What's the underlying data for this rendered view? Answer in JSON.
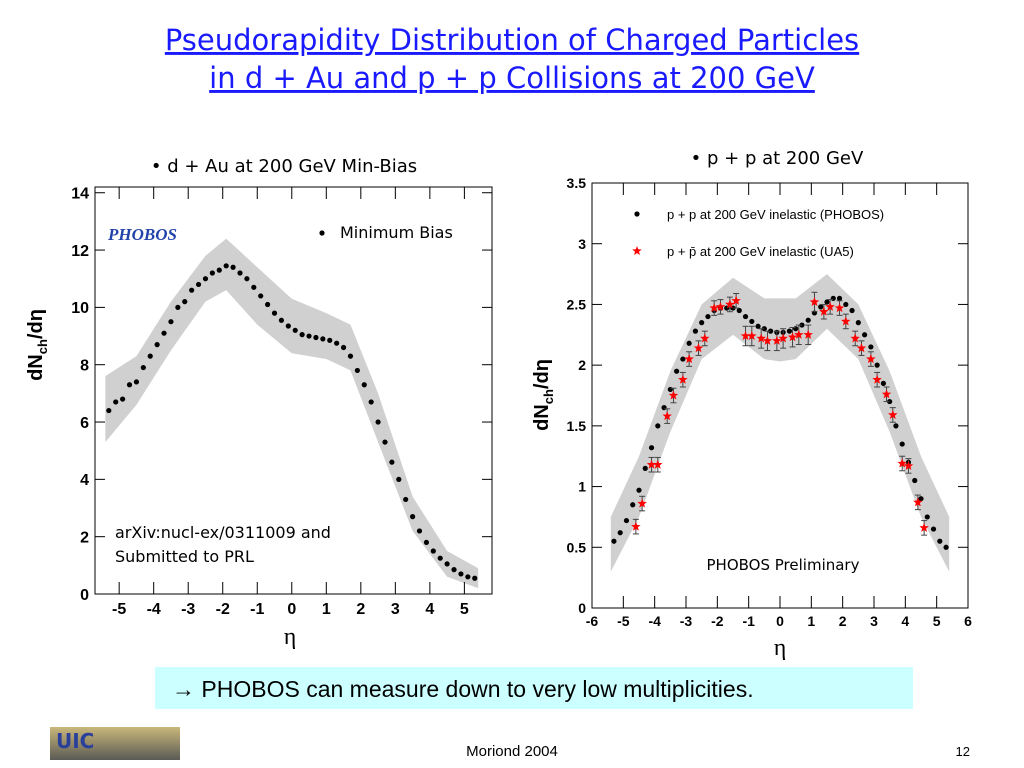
{
  "title": [
    "Pseudorapidity Distribution of Charged Particles",
    "in d + Au and p + p Collisions at 200 GeV"
  ],
  "callout": "→ PHOBOS can measure down to very low multiplicities.",
  "footer": "Moriond 2004",
  "page_number": "12",
  "logo": "UIC",
  "chart_data": [
    {
      "type": "scatter",
      "subtitle": "• d + Au at 200 GeV Min-Bias",
      "xlabel": "η",
      "ylabel": [
        "dN",
        "ch",
        "/dη"
      ],
      "logo_text": "PHOBOS",
      "annotation": [
        "arXiv:nucl-ex/0311009 and",
        "Submitted to PRL"
      ],
      "xlim": [
        -5.7,
        5.8
      ],
      "xticks": [
        -5,
        -4,
        -3,
        -2,
        -1,
        0,
        1,
        2,
        3,
        4,
        5
      ],
      "ylim": [
        0,
        14.2
      ],
      "yticks": [
        0,
        2,
        4,
        6,
        8,
        10,
        12,
        14
      ],
      "band": {
        "color": "#d0d0d0",
        "x": [
          -5.4,
          -4.5,
          -3.5,
          -2.5,
          -1.9,
          -1,
          0,
          1,
          1.7,
          2.5,
          3.5,
          4.5,
          5.4
        ],
        "lower": [
          5.3,
          6.6,
          8.5,
          10.2,
          10.6,
          9.4,
          8.4,
          8.2,
          7.8,
          5.3,
          2.2,
          0.6,
          0.2
        ],
        "upper": [
          7.6,
          8.3,
          10.2,
          11.8,
          12.4,
          11.4,
          10.3,
          9.8,
          9.4,
          7.0,
          3.4,
          1.5,
          0.9
        ]
      },
      "series": [
        {
          "name": "Minimum Bias",
          "color": "#000000",
          "marker": "circle",
          "x": [
            -5.3,
            -5.1,
            -4.9,
            -4.7,
            -4.5,
            -4.3,
            -4.1,
            -3.9,
            -3.7,
            -3.5,
            -3.3,
            -3.1,
            -2.9,
            -2.7,
            -2.5,
            -2.3,
            -2.1,
            -1.9,
            -1.7,
            -1.5,
            -1.3,
            -1.1,
            -0.9,
            -0.7,
            -0.5,
            -0.3,
            -0.1,
            0.1,
            0.3,
            0.5,
            0.7,
            0.9,
            1.1,
            1.3,
            1.5,
            1.7,
            1.9,
            2.1,
            2.3,
            2.5,
            2.7,
            2.9,
            3.1,
            3.3,
            3.5,
            3.7,
            3.9,
            4.1,
            4.3,
            4.5,
            4.7,
            4.9,
            5.1,
            5.3
          ],
          "values": [
            6.4,
            6.7,
            6.8,
            7.3,
            7.4,
            7.9,
            8.3,
            8.7,
            9.1,
            9.5,
            10.0,
            10.2,
            10.6,
            10.8,
            11.0,
            11.2,
            11.3,
            11.45,
            11.4,
            11.2,
            11.0,
            10.7,
            10.4,
            10.1,
            9.8,
            9.55,
            9.35,
            9.2,
            9.05,
            9.0,
            8.95,
            8.9,
            8.85,
            8.75,
            8.6,
            8.3,
            7.8,
            7.3,
            6.7,
            6.0,
            5.3,
            4.6,
            4.0,
            3.3,
            2.7,
            2.2,
            1.8,
            1.5,
            1.25,
            1.05,
            0.85,
            0.7,
            0.6,
            0.55
          ]
        }
      ]
    },
    {
      "type": "scatter",
      "subtitle": "• p + p at 200 GeV",
      "xlabel": "η",
      "ylabel": [
        "dN",
        "ch",
        "/dη"
      ],
      "annotation": [
        "PHOBOS Preliminary"
      ],
      "xlim": [
        -6,
        6
      ],
      "xticks": [
        -6,
        -5,
        -4,
        -3,
        -2,
        -1,
        0,
        1,
        2,
        3,
        4,
        5,
        6
      ],
      "ylim": [
        0,
        3.5
      ],
      "yticks": [
        0,
        0.5,
        1,
        1.5,
        2,
        2.5,
        3,
        3.5
      ],
      "band": {
        "color": "#d0d0d0",
        "x": [
          -5.4,
          -4.5,
          -3.5,
          -2.5,
          -1.5,
          -0.5,
          0,
          0.5,
          1.5,
          2.5,
          3.5,
          4.5,
          5.4
        ],
        "lower": [
          0.3,
          0.75,
          1.45,
          2.05,
          2.25,
          2.05,
          2.03,
          2.05,
          2.3,
          2.05,
          1.45,
          0.75,
          0.3
        ],
        "upper": [
          0.75,
          1.25,
          1.95,
          2.5,
          2.72,
          2.55,
          2.55,
          2.55,
          2.75,
          2.5,
          1.95,
          1.25,
          0.75
        ]
      },
      "series": [
        {
          "name": "p + p at 200 GeV inelastic (PHOBOS)",
          "color": "#000000",
          "marker": "circle",
          "x": [
            -5.3,
            -5.1,
            -4.9,
            -4.7,
            -4.5,
            -4.3,
            -4.1,
            -3.9,
            -3.7,
            -3.5,
            -3.3,
            -3.1,
            -2.9,
            -2.7,
            -2.5,
            -2.3,
            -2.1,
            -1.9,
            -1.7,
            -1.5,
            -1.3,
            -1.1,
            -0.9,
            -0.7,
            -0.5,
            -0.3,
            -0.1,
            0.1,
            0.3,
            0.5,
            0.7,
            0.9,
            1.1,
            1.3,
            1.5,
            1.7,
            1.9,
            2.1,
            2.3,
            2.5,
            2.7,
            2.9,
            3.1,
            3.3,
            3.5,
            3.7,
            3.9,
            4.1,
            4.3,
            4.5,
            4.7,
            4.9,
            5.1,
            5.3
          ],
          "values": [
            0.55,
            0.62,
            0.72,
            0.85,
            0.97,
            1.15,
            1.32,
            1.5,
            1.65,
            1.8,
            1.95,
            2.05,
            2.18,
            2.28,
            2.35,
            2.4,
            2.45,
            2.47,
            2.47,
            2.47,
            2.45,
            2.4,
            2.36,
            2.32,
            2.3,
            2.28,
            2.27,
            2.27,
            2.28,
            2.3,
            2.33,
            2.37,
            2.43,
            2.48,
            2.52,
            2.55,
            2.55,
            2.5,
            2.45,
            2.35,
            2.25,
            2.15,
            2.0,
            1.85,
            1.7,
            1.5,
            1.35,
            1.2,
            1.05,
            0.9,
            0.75,
            0.65,
            0.55,
            0.5
          ]
        },
        {
          "name": "p + p̄ at 200 GeV inelastic (UA5)",
          "color": "#ff0000",
          "marker": "star",
          "x": [
            -4.6,
            -4.4,
            -4.1,
            -3.9,
            -3.6,
            -3.4,
            -3.1,
            -2.9,
            -2.6,
            -2.4,
            -2.1,
            -1.9,
            -1.6,
            -1.4,
            -1.1,
            -0.9,
            -0.6,
            -0.4,
            -0.1,
            0.1,
            0.4,
            0.6,
            0.9,
            1.1,
            1.4,
            1.6,
            1.9,
            2.1,
            2.4,
            2.6,
            2.9,
            3.1,
            3.4,
            3.6,
            3.9,
            4.1,
            4.4,
            4.6
          ],
          "values": [
            0.67,
            0.86,
            1.18,
            1.18,
            1.58,
            1.75,
            1.88,
            2.05,
            2.14,
            2.22,
            2.47,
            2.48,
            2.5,
            2.53,
            2.24,
            2.24,
            2.22,
            2.2,
            2.2,
            2.22,
            2.23,
            2.25,
            2.25,
            2.52,
            2.44,
            2.48,
            2.47,
            2.36,
            2.22,
            2.14,
            2.05,
            1.88,
            1.76,
            1.59,
            1.19,
            1.17,
            0.87,
            0.66
          ],
          "errors": [
            0.06,
            0.06,
            0.06,
            0.06,
            0.06,
            0.06,
            0.06,
            0.06,
            0.06,
            0.06,
            0.06,
            0.06,
            0.06,
            0.06,
            0.08,
            0.08,
            0.08,
            0.08,
            0.08,
            0.08,
            0.08,
            0.08,
            0.08,
            0.08,
            0.06,
            0.06,
            0.06,
            0.06,
            0.06,
            0.06,
            0.06,
            0.06,
            0.06,
            0.06,
            0.06,
            0.06,
            0.06,
            0.06
          ]
        }
      ]
    }
  ]
}
